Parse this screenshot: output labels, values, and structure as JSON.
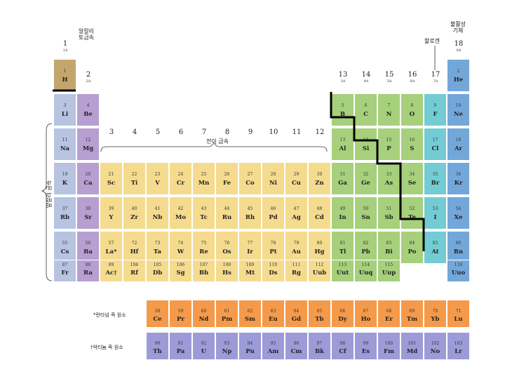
{
  "colors": {
    "hydrogen": "#c3a66c",
    "alkali": "#b7c3e1",
    "alkaline_earth": "#b79fd1",
    "transition": "#f5db8e",
    "p_block": "#a6d07b",
    "halogen": "#73ccd4",
    "noble": "#74a7d9",
    "lanthanide": "#f59a4a",
    "actinide": "#9c9bd8"
  },
  "group_labels": [
    {
      "num": "1",
      "sub": "1A"
    },
    {
      "num": "2",
      "sub": "2A"
    },
    {
      "num": "3",
      "sub": ""
    },
    {
      "num": "4",
      "sub": ""
    },
    {
      "num": "5",
      "sub": ""
    },
    {
      "num": "6",
      "sub": ""
    },
    {
      "num": "7",
      "sub": ""
    },
    {
      "num": "8",
      "sub": ""
    },
    {
      "num": "9",
      "sub": ""
    },
    {
      "num": "10",
      "sub": ""
    },
    {
      "num": "11",
      "sub": ""
    },
    {
      "num": "12",
      "sub": ""
    },
    {
      "num": "13",
      "sub": "3A"
    },
    {
      "num": "14",
      "sub": "4A"
    },
    {
      "num": "15",
      "sub": "5A"
    },
    {
      "num": "16",
      "sub": "6A"
    },
    {
      "num": "17",
      "sub": "7A"
    },
    {
      "num": "18",
      "sub": "8A"
    }
  ],
  "annotations": {
    "alkaline_earth": "알칼리\n토금속",
    "noble_gas": "불활성\n기체",
    "halogen": "할로겐",
    "transition": "전이 금속",
    "alkali": "알칼리 금속",
    "lanthanide_note": "*란타넘 족 원소",
    "actinide_note": "†악티늄 족 원소"
  },
  "elements": [
    {
      "z": "1",
      "s": "H",
      "row": 1,
      "col": 1,
      "cat": "hydrogen"
    },
    {
      "z": "2",
      "s": "He",
      "row": 1,
      "col": 18,
      "cat": "noble"
    },
    {
      "z": "3",
      "s": "Li",
      "row": 2,
      "col": 1,
      "cat": "alkali"
    },
    {
      "z": "4",
      "s": "Be",
      "row": 2,
      "col": 2,
      "cat": "alkaline_earth"
    },
    {
      "z": "5",
      "s": "B",
      "row": 2,
      "col": 13,
      "cat": "p_block"
    },
    {
      "z": "6",
      "s": "C",
      "row": 2,
      "col": 14,
      "cat": "p_block"
    },
    {
      "z": "7",
      "s": "N",
      "row": 2,
      "col": 15,
      "cat": "p_block"
    },
    {
      "z": "8",
      "s": "O",
      "row": 2,
      "col": 16,
      "cat": "p_block"
    },
    {
      "z": "9",
      "s": "F",
      "row": 2,
      "col": 17,
      "cat": "halogen"
    },
    {
      "z": "10",
      "s": "Ne",
      "row": 2,
      "col": 18,
      "cat": "noble"
    },
    {
      "z": "11",
      "s": "Na",
      "row": 3,
      "col": 1,
      "cat": "alkali"
    },
    {
      "z": "12",
      "s": "Mg",
      "row": 3,
      "col": 2,
      "cat": "alkaline_earth"
    },
    {
      "z": "13",
      "s": "Al",
      "row": 3,
      "col": 13,
      "cat": "p_block"
    },
    {
      "z": "14",
      "s": "Si",
      "row": 3,
      "col": 14,
      "cat": "p_block"
    },
    {
      "z": "15",
      "s": "P",
      "row": 3,
      "col": 15,
      "cat": "p_block"
    },
    {
      "z": "16",
      "s": "S",
      "row": 3,
      "col": 16,
      "cat": "p_block"
    },
    {
      "z": "17",
      "s": "Cl",
      "row": 3,
      "col": 17,
      "cat": "halogen"
    },
    {
      "z": "18",
      "s": "Ar",
      "row": 3,
      "col": 18,
      "cat": "noble"
    },
    {
      "z": "19",
      "s": "K",
      "row": 4,
      "col": 1,
      "cat": "alkali"
    },
    {
      "z": "20",
      "s": "Ca",
      "row": 4,
      "col": 2,
      "cat": "alkaline_earth"
    },
    {
      "z": "21",
      "s": "Sc",
      "row": 4,
      "col": 3,
      "cat": "transition"
    },
    {
      "z": "22",
      "s": "Ti",
      "row": 4,
      "col": 4,
      "cat": "transition"
    },
    {
      "z": "23",
      "s": "V",
      "row": 4,
      "col": 5,
      "cat": "transition"
    },
    {
      "z": "24",
      "s": "Cr",
      "row": 4,
      "col": 6,
      "cat": "transition"
    },
    {
      "z": "25",
      "s": "Mn",
      "row": 4,
      "col": 7,
      "cat": "transition"
    },
    {
      "z": "26",
      "s": "Fe",
      "row": 4,
      "col": 8,
      "cat": "transition"
    },
    {
      "z": "27",
      "s": "Co",
      "row": 4,
      "col": 9,
      "cat": "transition"
    },
    {
      "z": "28",
      "s": "Ni",
      "row": 4,
      "col": 10,
      "cat": "transition"
    },
    {
      "z": "29",
      "s": "Cu",
      "row": 4,
      "col": 11,
      "cat": "transition"
    },
    {
      "z": "30",
      "s": "Zn",
      "row": 4,
      "col": 12,
      "cat": "transition"
    },
    {
      "z": "31",
      "s": "Ga",
      "row": 4,
      "col": 13,
      "cat": "p_block"
    },
    {
      "z": "32",
      "s": "Ge",
      "row": 4,
      "col": 14,
      "cat": "p_block"
    },
    {
      "z": "33",
      "s": "As",
      "row": 4,
      "col": 15,
      "cat": "p_block"
    },
    {
      "z": "34",
      "s": "Se",
      "row": 4,
      "col": 16,
      "cat": "p_block"
    },
    {
      "z": "35",
      "s": "Br",
      "row": 4,
      "col": 17,
      "cat": "halogen"
    },
    {
      "z": "36",
      "s": "Kr",
      "row": 4,
      "col": 18,
      "cat": "noble"
    },
    {
      "z": "37",
      "s": "Rb",
      "row": 5,
      "col": 1,
      "cat": "alkali"
    },
    {
      "z": "38",
      "s": "Sr",
      "row": 5,
      "col": 2,
      "cat": "alkaline_earth"
    },
    {
      "z": "39",
      "s": "Y",
      "row": 5,
      "col": 3,
      "cat": "transition"
    },
    {
      "z": "40",
      "s": "Zr",
      "row": 5,
      "col": 4,
      "cat": "transition"
    },
    {
      "z": "41",
      "s": "Nb",
      "row": 5,
      "col": 5,
      "cat": "transition"
    },
    {
      "z": "42",
      "s": "Mo",
      "row": 5,
      "col": 6,
      "cat": "transition"
    },
    {
      "z": "43",
      "s": "Tc",
      "row": 5,
      "col": 7,
      "cat": "transition"
    },
    {
      "z": "44",
      "s": "Ru",
      "row": 5,
      "col": 8,
      "cat": "transition"
    },
    {
      "z": "45",
      "s": "Rh",
      "row": 5,
      "col": 9,
      "cat": "transition"
    },
    {
      "z": "46",
      "s": "Pd",
      "row": 5,
      "col": 10,
      "cat": "transition"
    },
    {
      "z": "47",
      "s": "Ag",
      "row": 5,
      "col": 11,
      "cat": "transition"
    },
    {
      "z": "48",
      "s": "Cd",
      "row": 5,
      "col": 12,
      "cat": "transition"
    },
    {
      "z": "49",
      "s": "In",
      "row": 5,
      "col": 13,
      "cat": "p_block"
    },
    {
      "z": "50",
      "s": "Sn",
      "row": 5,
      "col": 14,
      "cat": "p_block"
    },
    {
      "z": "51",
      "s": "Sb",
      "row": 5,
      "col": 15,
      "cat": "p_block"
    },
    {
      "z": "52",
      "s": "Te",
      "row": 5,
      "col": 16,
      "cat": "p_block"
    },
    {
      "z": "53",
      "s": "I",
      "row": 5,
      "col": 17,
      "cat": "halogen"
    },
    {
      "z": "54",
      "s": "Xe",
      "row": 5,
      "col": 18,
      "cat": "noble"
    },
    {
      "z": "55",
      "s": "Cs",
      "row": 6,
      "col": 1,
      "cat": "alkali"
    },
    {
      "z": "56",
      "s": "Ba",
      "row": 6,
      "col": 2,
      "cat": "alkaline_earth"
    },
    {
      "z": "57",
      "s": "La*",
      "row": 6,
      "col": 3,
      "cat": "transition"
    },
    {
      "z": "72",
      "s": "Hf",
      "row": 6,
      "col": 4,
      "cat": "transition"
    },
    {
      "z": "73",
      "s": "Ta",
      "row": 6,
      "col": 5,
      "cat": "transition"
    },
    {
      "z": "74",
      "s": "W",
      "row": 6,
      "col": 6,
      "cat": "transition"
    },
    {
      "z": "75",
      "s": "Re",
      "row": 6,
      "col": 7,
      "cat": "transition"
    },
    {
      "z": "76",
      "s": "Os",
      "row": 6,
      "col": 8,
      "cat": "transition"
    },
    {
      "z": "77",
      "s": "Ir",
      "row": 6,
      "col": 9,
      "cat": "transition"
    },
    {
      "z": "78",
      "s": "Pt",
      "row": 6,
      "col": 10,
      "cat": "transition"
    },
    {
      "z": "79",
      "s": "Au",
      "row": 6,
      "col": 11,
      "cat": "transition"
    },
    {
      "z": "80",
      "s": "Hg",
      "row": 6,
      "col": 12,
      "cat": "transition"
    },
    {
      "z": "81",
      "s": "Tl",
      "row": 6,
      "col": 13,
      "cat": "p_block"
    },
    {
      "z": "82",
      "s": "Pb",
      "row": 6,
      "col": 14,
      "cat": "p_block"
    },
    {
      "z": "83",
      "s": "Bi",
      "row": 6,
      "col": 15,
      "cat": "p_block"
    },
    {
      "z": "84",
      "s": "Po",
      "row": 6,
      "col": 16,
      "cat": "p_block"
    },
    {
      "z": "85",
      "s": "At",
      "row": 6,
      "col": 17,
      "cat": "halogen"
    },
    {
      "z": "86",
      "s": "Rn",
      "row": 6,
      "col": 18,
      "cat": "noble"
    },
    {
      "z": "87",
      "s": "Fr",
      "row": 7,
      "col": 1,
      "cat": "alkali"
    },
    {
      "z": "88",
      "s": "Ra",
      "row": 7,
      "col": 2,
      "cat": "alkaline_earth"
    },
    {
      "z": "89",
      "s": "Ac†",
      "row": 7,
      "col": 3,
      "cat": "transition"
    },
    {
      "z": "104",
      "s": "Rf",
      "row": 7,
      "col": 4,
      "cat": "transition"
    },
    {
      "z": "105",
      "s": "Db",
      "row": 7,
      "col": 5,
      "cat": "transition"
    },
    {
      "z": "106",
      "s": "Sg",
      "row": 7,
      "col": 6,
      "cat": "transition"
    },
    {
      "z": "107",
      "s": "Bh",
      "row": 7,
      "col": 7,
      "cat": "transition"
    },
    {
      "z": "108",
      "s": "Hs",
      "row": 7,
      "col": 8,
      "cat": "transition"
    },
    {
      "z": "109",
      "s": "Mt",
      "row": 7,
      "col": 9,
      "cat": "transition"
    },
    {
      "z": "110",
      "s": "Ds",
      "row": 7,
      "col": 10,
      "cat": "transition"
    },
    {
      "z": "111",
      "s": "Rg",
      "row": 7,
      "col": 11,
      "cat": "transition"
    },
    {
      "z": "112",
      "s": "Uub",
      "row": 7,
      "col": 12,
      "cat": "transition"
    },
    {
      "z": "113",
      "s": "Uut",
      "row": 7,
      "col": 13,
      "cat": "p_block"
    },
    {
      "z": "114",
      "s": "Uuq",
      "row": 7,
      "col": 14,
      "cat": "p_block"
    },
    {
      "z": "115",
      "s": "Uup",
      "row": 7,
      "col": 15,
      "cat": "p_block"
    },
    {
      "z": "118",
      "s": "Uuo",
      "row": 7,
      "col": 18,
      "cat": "noble"
    },
    {
      "z": "58",
      "s": "Ce",
      "row": 9,
      "col": 5,
      "cat": "lanthanide"
    },
    {
      "z": "59",
      "s": "Pr",
      "row": 9,
      "col": 6,
      "cat": "lanthanide"
    },
    {
      "z": "60",
      "s": "Nd",
      "row": 9,
      "col": 7,
      "cat": "lanthanide"
    },
    {
      "z": "61",
      "s": "Pm",
      "row": 9,
      "col": 8,
      "cat": "lanthanide"
    },
    {
      "z": "62",
      "s": "Sm",
      "row": 9,
      "col": 9,
      "cat": "lanthanide"
    },
    {
      "z": "63",
      "s": "Eu",
      "row": 9,
      "col": 10,
      "cat": "lanthanide"
    },
    {
      "z": "64",
      "s": "Gd",
      "row": 9,
      "col": 11,
      "cat": "lanthanide"
    },
    {
      "z": "65",
      "s": "Tb",
      "row": 9,
      "col": 12,
      "cat": "lanthanide"
    },
    {
      "z": "66",
      "s": "Dy",
      "row": 9,
      "col": 13,
      "cat": "lanthanide"
    },
    {
      "z": "67",
      "s": "Ho",
      "row": 9,
      "col": 14,
      "cat": "lanthanide"
    },
    {
      "z": "68",
      "s": "Er",
      "row": 9,
      "col": 15,
      "cat": "lanthanide"
    },
    {
      "z": "69",
      "s": "Tm",
      "row": 9,
      "col": 16,
      "cat": "lanthanide"
    },
    {
      "z": "70",
      "s": "Yb",
      "row": 9,
      "col": 17,
      "cat": "lanthanide"
    },
    {
      "z": "71",
      "s": "Lu",
      "row": 9,
      "col": 18,
      "cat": "lanthanide"
    },
    {
      "z": "90",
      "s": "Th",
      "row": 10,
      "col": 5,
      "cat": "actinide"
    },
    {
      "z": "91",
      "s": "Pa",
      "row": 10,
      "col": 6,
      "cat": "actinide"
    },
    {
      "z": "92",
      "s": "U",
      "row": 10,
      "col": 7,
      "cat": "actinide"
    },
    {
      "z": "93",
      "s": "Np",
      "row": 10,
      "col": 8,
      "cat": "actinide"
    },
    {
      "z": "94",
      "s": "Pu",
      "row": 10,
      "col": 9,
      "cat": "actinide"
    },
    {
      "z": "95",
      "s": "Am",
      "row": 10,
      "col": 10,
      "cat": "actinide"
    },
    {
      "z": "96",
      "s": "Cm",
      "row": 10,
      "col": 11,
      "cat": "actinide"
    },
    {
      "z": "97",
      "s": "Bk",
      "row": 10,
      "col": 12,
      "cat": "actinide"
    },
    {
      "z": "98",
      "s": "Cf",
      "row": 10,
      "col": 13,
      "cat": "actinide"
    },
    {
      "z": "99",
      "s": "Es",
      "row": 10,
      "col": 14,
      "cat": "actinide"
    },
    {
      "z": "100",
      "s": "Fm",
      "row": 10,
      "col": 15,
      "cat": "actinide"
    },
    {
      "z": "101",
      "s": "Md",
      "row": 10,
      "col": 16,
      "cat": "actinide"
    },
    {
      "z": "102",
      "s": "No",
      "row": 10,
      "col": 17,
      "cat": "actinide"
    },
    {
      "z": "103",
      "s": "Lr",
      "row": 10,
      "col": 18,
      "cat": "actinide"
    }
  ]
}
